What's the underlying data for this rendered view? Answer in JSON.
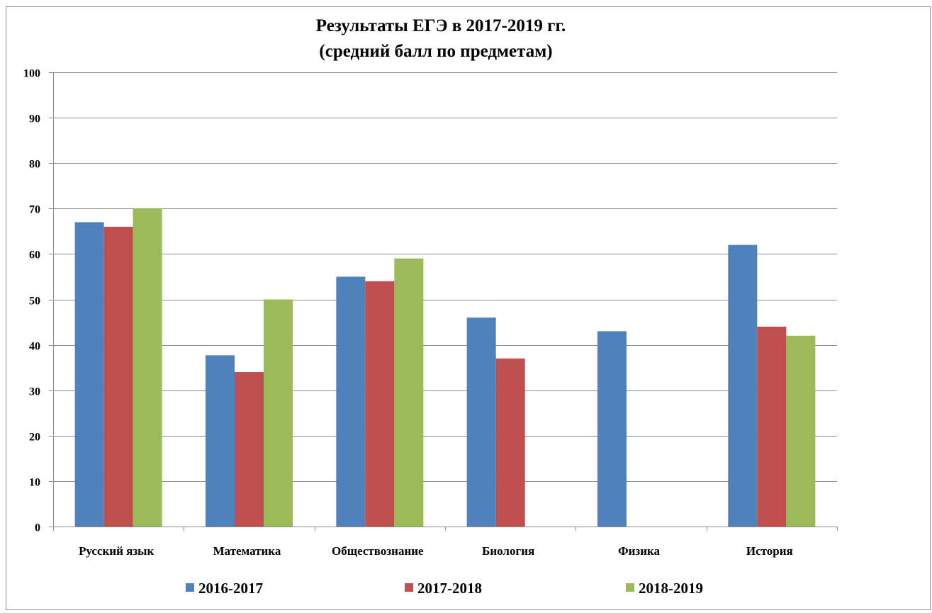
{
  "chart_data": {
    "type": "bar",
    "title": "Результаты ЕГЭ в 2017-2019 гг.",
    "subtitle": "(средний балл по предметам)",
    "xlabel": "",
    "ylabel": "",
    "ylim": [
      0,
      100
    ],
    "ytick_step": 10,
    "grid": "horizontal",
    "legend_position": "bottom",
    "categories": [
      "Русский язык",
      "Математика",
      "Обществознание",
      "Биология",
      "Физика",
      "История"
    ],
    "series": [
      {
        "name": "2016-2017",
        "color": "#4F81BD",
        "values": [
          67,
          37.7,
          55,
          46,
          43,
          62
        ]
      },
      {
        "name": "2017-2018",
        "color": "#C0504D",
        "values": [
          66,
          34,
          54,
          37,
          null,
          44
        ]
      },
      {
        "name": "2018-2019",
        "color": "#9BBB59",
        "values": [
          70,
          50,
          59,
          null,
          null,
          42
        ]
      }
    ]
  }
}
